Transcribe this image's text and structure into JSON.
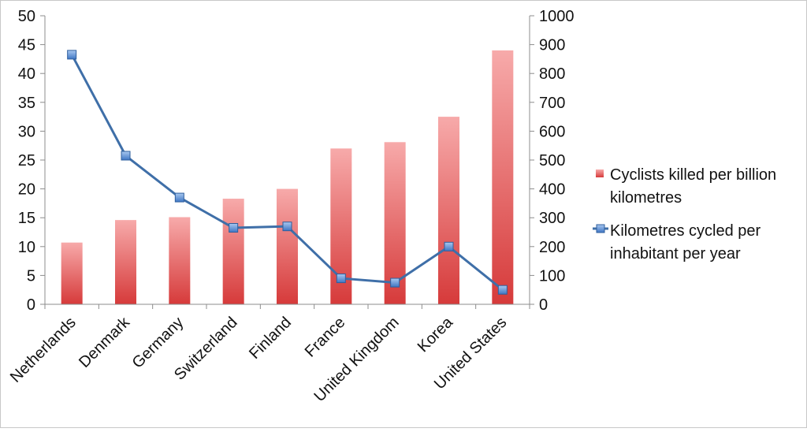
{
  "chart_data": {
    "type": "bar",
    "categories": [
      "Netherlands",
      "Denmark",
      "Germany",
      "Switzerland",
      "Finland",
      "France",
      "United Kingdom",
      "Korea",
      "United States"
    ],
    "series": [
      {
        "name": "Cyclists killed per billion kilometres",
        "type": "bar",
        "axis": "left",
        "color": "#d94545",
        "values": [
          10.7,
          14.6,
          15.1,
          18.3,
          20.0,
          27.0,
          28.1,
          32.5,
          44.0
        ]
      },
      {
        "name": "Kilometres cycled per inhabitant per year",
        "type": "line",
        "axis": "right",
        "color": "#3f6fa8",
        "marker_color": "#5b8fd6",
        "values": [
          865,
          515,
          370,
          265,
          270,
          90,
          75,
          200,
          50
        ]
      }
    ],
    "y_left": {
      "min": 0,
      "max": 50,
      "step": 5,
      "ticks": [
        "0",
        "5",
        "10",
        "15",
        "20",
        "25",
        "30",
        "35",
        "40",
        "45",
        "50"
      ]
    },
    "y_right": {
      "min": 0,
      "max": 1000,
      "step": 100,
      "ticks": [
        "0",
        "100",
        "200",
        "300",
        "400",
        "500",
        "600",
        "700",
        "800",
        "900",
        "1000"
      ]
    },
    "grid": false,
    "legend_position": "right",
    "legend": {
      "bar_label_lines": [
        "Cyclists killed per billion",
        "kilometres"
      ],
      "line_label_lines": [
        "Kilometres cycled per",
        "inhabitant per year"
      ]
    }
  }
}
